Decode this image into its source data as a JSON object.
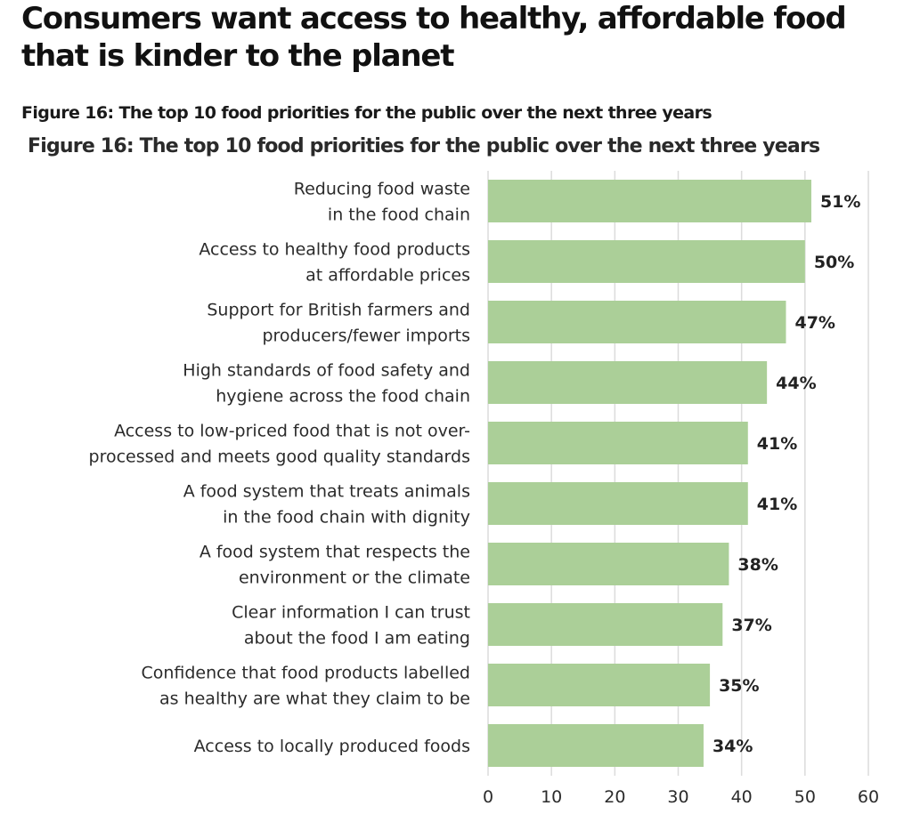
{
  "headline": "Consumers want access to healthy, affordable food that is kinder to the planet",
  "figure_title": "Figure 16: The top 10 food priorities for the public over the next three years",
  "chart_data": {
    "type": "bar",
    "orientation": "horizontal",
    "title": "Figure 16: The top 10 food priorities for the public over the next three years",
    "xlabel": "",
    "ylabel": "",
    "xlim": [
      0,
      60
    ],
    "xticks": [
      0,
      10,
      20,
      30,
      40,
      50,
      60
    ],
    "grid": true,
    "bar_color": "#abcf98",
    "value_suffix": "%",
    "categories": [
      [
        "Reducing food waste",
        "in the food chain"
      ],
      [
        "Access to healthy food products",
        "at affordable prices"
      ],
      [
        "Support for British farmers and",
        "producers/fewer imports"
      ],
      [
        "High standards of food safety and",
        "hygiene across the food chain"
      ],
      [
        "Access to low-priced food that is not over-",
        "processed and meets good quality standards"
      ],
      [
        "A food system that treats animals",
        "in the food chain with dignity"
      ],
      [
        "A food system that respects the",
        "environment or the climate"
      ],
      [
        "Clear information I can trust",
        "about the food I am eating"
      ],
      [
        "Confidence that food products labelled",
        "as healthy are what they claim to be"
      ],
      [
        "Access to locally produced foods"
      ]
    ],
    "values": [
      51,
      50,
      47,
      44,
      41,
      41,
      38,
      37,
      35,
      34
    ],
    "value_labels": [
      "51%",
      "50%",
      "47%",
      "44%",
      "41%",
      "41%",
      "38%",
      "37%",
      "35%",
      "34%"
    ]
  }
}
